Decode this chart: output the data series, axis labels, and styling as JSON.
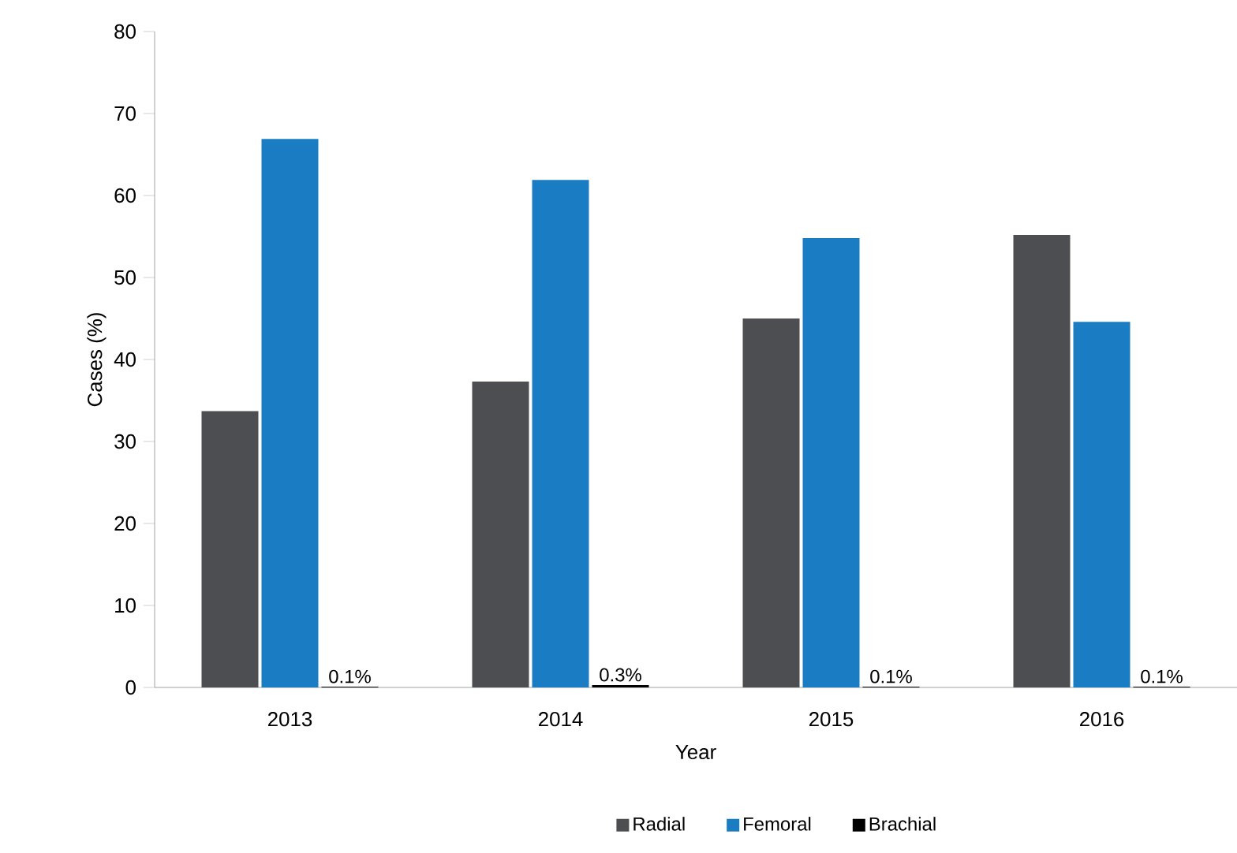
{
  "chart_data": {
    "type": "bar",
    "xlabel": "Year",
    "ylabel": "Cases (%)",
    "categories": [
      "2013",
      "2014",
      "2015",
      "2016"
    ],
    "series": [
      {
        "name": "Radial",
        "color": "#4d4e52",
        "values": [
          33.7,
          37.3,
          45.0,
          55.2
        ]
      },
      {
        "name": "Femoral",
        "color": "#1a7dc4",
        "values": [
          66.9,
          61.9,
          54.8,
          44.6
        ]
      },
      {
        "name": "Brachial",
        "color": "#000000",
        "values": [
          0.1,
          0.3,
          0.1,
          0.1
        ],
        "value_labels": [
          "0.1%",
          "0.3%",
          "0.1%",
          "0.1%"
        ]
      }
    ],
    "ylim": [
      0,
      80
    ],
    "yticks": [
      0,
      10,
      20,
      30,
      40,
      50,
      60,
      70,
      80
    ],
    "legend": "bottom"
  }
}
